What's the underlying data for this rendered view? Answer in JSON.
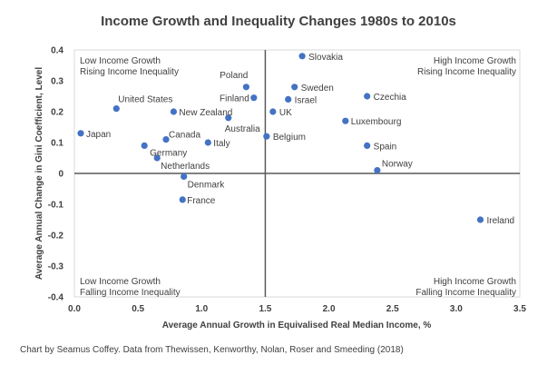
{
  "chart_data": {
    "type": "scatter",
    "title": "Income Growth and Inequality Changes 1980s to 2010s",
    "xlabel": "Average Annual Growth in Equivalised Real Median Income, %",
    "ylabel": "Average Annual Change in Gini Coefficient, Level",
    "xlim": [
      0.0,
      3.5
    ],
    "ylim": [
      -0.4,
      0.4
    ],
    "x_ticks": [
      "0.0",
      "0.5",
      "1.0",
      "1.5",
      "2.0",
      "2.5",
      "3.0",
      "3.5"
    ],
    "y_ticks": [
      "0.4",
      "0.3",
      "0.2",
      "0.1",
      "0",
      "-0.1",
      "-0.2",
      "-0.3",
      "-0.4"
    ],
    "x_divider": 1.5,
    "y_divider": 0,
    "grid": false,
    "marker_color": "#4472c4",
    "quadrant_labels": {
      "top_left": [
        "Low Income Growth",
        "Rising Income Inequality"
      ],
      "top_right": [
        "High Income Growth",
        "Rising Income Inequality"
      ],
      "bottom_left": [
        "Low Income Growth",
        "Falling Income Inequality"
      ],
      "bottom_right": [
        "High Income Growth",
        "Falling Income Inequality"
      ]
    },
    "points": [
      {
        "label": "Japan",
        "x": 0.05,
        "y": 0.13
      },
      {
        "label": "United States",
        "x": 0.33,
        "y": 0.21
      },
      {
        "label": "Germany",
        "x": 0.55,
        "y": 0.09
      },
      {
        "label": "Netherlands",
        "x": 0.65,
        "y": 0.05
      },
      {
        "label": "Canada",
        "x": 0.72,
        "y": 0.11
      },
      {
        "label": "New Zealand",
        "x": 0.78,
        "y": 0.2
      },
      {
        "label": "Denmark",
        "x": 0.86,
        "y": -0.01
      },
      {
        "label": "France",
        "x": 0.85,
        "y": -0.085
      },
      {
        "label": "Italy",
        "x": 1.05,
        "y": 0.1
      },
      {
        "label": "Australia",
        "x": 1.21,
        "y": 0.18
      },
      {
        "label": "Poland",
        "x": 1.35,
        "y": 0.28
      },
      {
        "label": "Finland",
        "x": 1.41,
        "y": 0.245
      },
      {
        "label": "Belgium",
        "x": 1.51,
        "y": 0.12
      },
      {
        "label": "UK",
        "x": 1.56,
        "y": 0.2
      },
      {
        "label": "Israel",
        "x": 1.68,
        "y": 0.24
      },
      {
        "label": "Sweden",
        "x": 1.73,
        "y": 0.28
      },
      {
        "label": "Slovakia",
        "x": 1.79,
        "y": 0.38
      },
      {
        "label": "Luxembourg",
        "x": 2.13,
        "y": 0.17
      },
      {
        "label": "Czechia",
        "x": 2.3,
        "y": 0.25
      },
      {
        "label": "Spain",
        "x": 2.3,
        "y": 0.09
      },
      {
        "label": "Norway",
        "x": 2.38,
        "y": 0.01
      },
      {
        "label": "Ireland",
        "x": 3.19,
        "y": -0.15
      }
    ]
  },
  "credit": "Chart by Seamus Coffey.  Data from Thewissen, Kenworthy, Nolan, Roser and Smeeding (2018)"
}
